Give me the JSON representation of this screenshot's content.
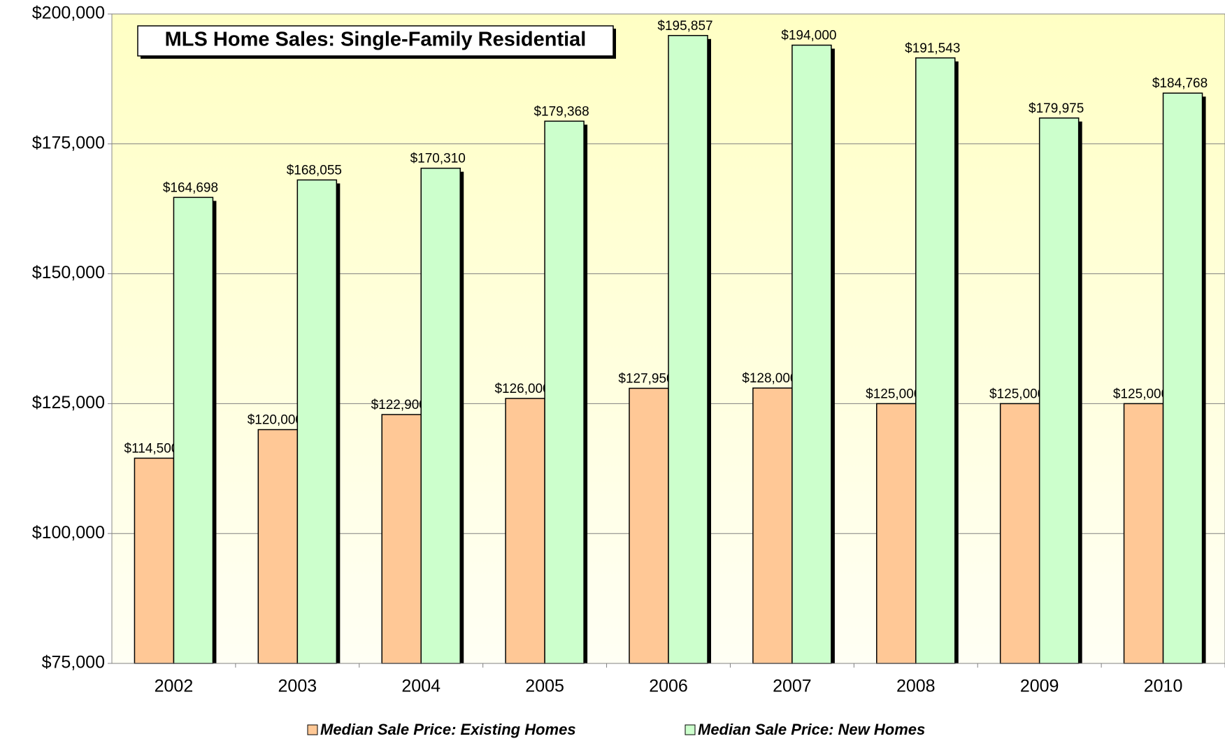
{
  "chart_data": {
    "type": "bar",
    "title": "MLS Home Sales: Single-Family Residential",
    "categories": [
      "2002",
      "2003",
      "2004",
      "2005",
      "2006",
      "2007",
      "2008",
      "2009",
      "2010"
    ],
    "series": [
      {
        "name": "Median Sale Price: Existing Homes",
        "color": "#ffc896",
        "values": [
          114500,
          120000,
          122900,
          126000,
          127950,
          128000,
          125000,
          125000,
          125000
        ],
        "value_labels": [
          "$114,500",
          "$120,000",
          "$122,900",
          "$126,000",
          "$127,950",
          "$128,000",
          "$125,000",
          "$125,000",
          "$125,000"
        ]
      },
      {
        "name": "Median Sale Price: New Homes",
        "color": "#ccffcc",
        "values": [
          164698,
          168055,
          170310,
          179368,
          195857,
          194000,
          191543,
          179975,
          184768
        ],
        "value_labels": [
          "$164,698",
          "$168,055",
          "$170,310",
          "$179,368",
          "$195,857",
          "$194,000",
          "$191,543",
          "$179,975",
          "$184,768"
        ]
      }
    ],
    "ylim": [
      75000,
      200000
    ],
    "yticks": [
      {
        "value": 75000,
        "label": "$75,000"
      },
      {
        "value": 100000,
        "label": "$100,000"
      },
      {
        "value": 125000,
        "label": "$125,000"
      },
      {
        "value": 150000,
        "label": "$150,000"
      },
      {
        "value": 175000,
        "label": "$175,000"
      },
      {
        "value": 200000,
        "label": "$200,000"
      }
    ],
    "grid": true
  }
}
